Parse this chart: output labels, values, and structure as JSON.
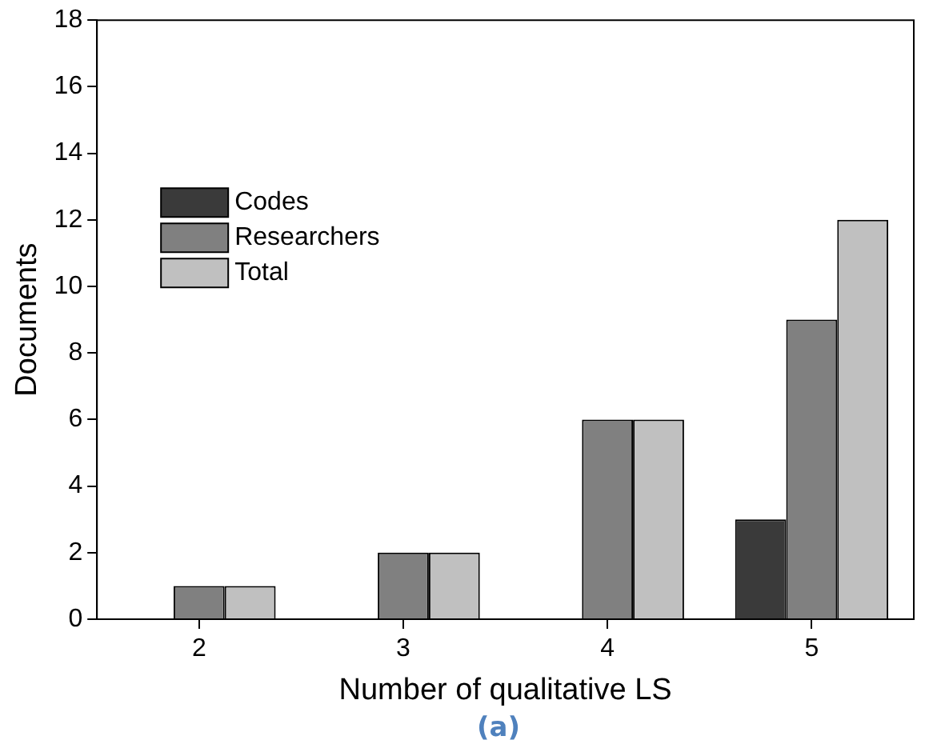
{
  "chart_data": {
    "type": "bar",
    "xlabel": "Number of qualitative LS",
    "ylabel": "Documents",
    "categories": [
      "2",
      "3",
      "4",
      "5"
    ],
    "series": [
      {
        "name": "Codes",
        "color": "#3a3a3a",
        "values": [
          0,
          0,
          0,
          3
        ]
      },
      {
        "name": "Researchers",
        "color": "#808080",
        "values": [
          1,
          2,
          6,
          9
        ]
      },
      {
        "name": "Total",
        "color": "#c0c0c0",
        "values": [
          1,
          2,
          6,
          12
        ]
      }
    ],
    "ylim": [
      0,
      18
    ],
    "yticks": [
      0,
      2,
      4,
      6,
      8,
      10,
      12,
      14,
      16,
      18
    ],
    "grid": false,
    "legend": "top left",
    "annotations": [
      "(a)"
    ]
  }
}
